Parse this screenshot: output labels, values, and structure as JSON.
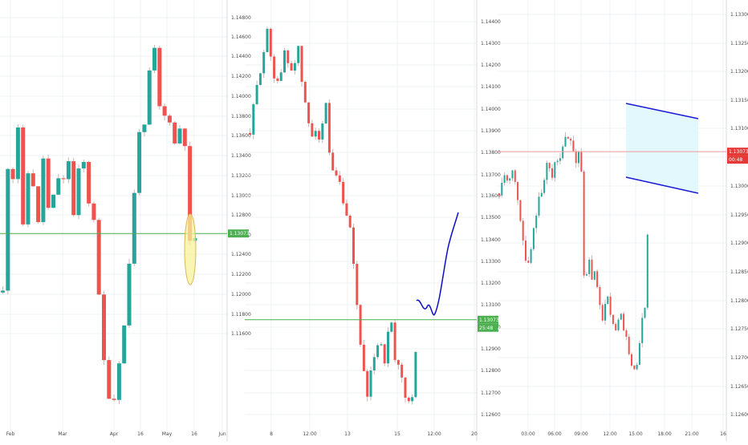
{
  "colors": {
    "up": "#26a69a",
    "down": "#ef5350",
    "wick": "#c9b8b8",
    "price_line_green": "#4caf50",
    "price_line_red": "#ef9a9a",
    "label_green": "#4caf50",
    "label_red": "#e53935",
    "channel": "#1a1ad6",
    "channel_fill": "#e3f8fd",
    "ellipse_fill": "#f7f39a",
    "ellipse_stroke": "#d9b75a",
    "drawn_path": "#0d0dc7"
  },
  "chart_data": [
    {
      "type": "candlestick",
      "timeframe_hint": "daily",
      "x_ticks": [
        "Feb",
        "Mar",
        "Apr",
        "16",
        "May",
        "16",
        "Jun"
      ],
      "y_ticks": [
        "1.14800",
        "1.14600",
        "1.14400",
        "1.14200",
        "1.14000",
        "1.13800",
        "1.13600",
        "1.13400",
        "1.13200",
        "1.13000",
        "1.12800",
        "1.12600",
        "1.12400",
        "1.12200",
        "1.12000",
        "1.11800",
        "1.11600"
      ],
      "ylim": [
        1.115,
        1.1488
      ],
      "last_price_label": "1.13073",
      "last_price": 1.13073,
      "annotation": "yellow ellipse around latest candle",
      "path_points": [
        [
          0,
          1.126
        ],
        [
          4,
          1.134
        ],
        [
          9,
          1.139
        ],
        [
          14,
          1.134
        ],
        [
          19,
          1.1395
        ],
        [
          24,
          1.13
        ],
        [
          30,
          1.135
        ],
        [
          35,
          1.137
        ],
        [
          40,
          1.133
        ],
        [
          45,
          1.131
        ],
        [
          50,
          1.137
        ],
        [
          55,
          1.1345
        ],
        [
          60,
          1.129
        ],
        [
          66,
          1.138
        ],
        [
          72,
          1.133
        ],
        [
          78,
          1.136
        ],
        [
          84,
          1.137
        ],
        [
          88,
          1.132
        ],
        [
          93,
          1.1345
        ],
        [
          98,
          1.138
        ],
        [
          103,
          1.135
        ],
        [
          108,
          1.133
        ],
        [
          114,
          1.132
        ],
        [
          118,
          1.128
        ],
        [
          122,
          1.122
        ],
        [
          127,
          1.12
        ],
        [
          132,
          1.118
        ],
        [
          138,
          1.1172
        ],
        [
          143,
          1.12
        ],
        [
          148,
          1.122
        ],
        [
          153,
          1.124
        ],
        [
          158,
          1.129
        ],
        [
          163,
          1.133
        ],
        [
          168,
          1.138
        ],
        [
          173,
          1.141
        ],
        [
          178,
          1.138
        ],
        [
          182,
          1.143
        ],
        [
          186,
          1.146
        ],
        [
          190,
          1.145
        ],
        [
          195,
          1.141
        ],
        [
          199,
          1.138
        ],
        [
          204,
          1.142
        ],
        [
          208,
          1.14
        ],
        [
          212,
          1.139
        ],
        [
          216,
          1.137
        ],
        [
          220,
          1.139
        ],
        [
          224,
          1.141
        ],
        [
          228,
          1.137
        ],
        [
          232,
          1.13
        ],
        [
          236,
          1.129
        ],
        [
          240,
          1.1307
        ]
      ]
    },
    {
      "type": "candlestick",
      "timeframe_hint": "hourly",
      "x_ticks": [
        "8",
        "12:00",
        "13",
        "15",
        "12:00",
        "20"
      ],
      "y_ticks": [
        "1.14400",
        "1.14300",
        "1.14200",
        "1.14100",
        "1.14000",
        "1.13900",
        "1.13800",
        "1.13700",
        "1.13600",
        "1.13500",
        "1.13400",
        "1.13300",
        "1.13200",
        "1.13100",
        "1.13000",
        "1.12900",
        "1.12800",
        "1.12700",
        "1.12600"
      ],
      "ylim": [
        1.1258,
        1.1447
      ],
      "last_price_label": "1.13073",
      "countdown_label": "25:48",
      "last_price": 1.13073,
      "annotation": "hand-drawn blue projection path",
      "path_points": [
        [
          0,
          1.1391
        ],
        [
          8,
          1.141
        ],
        [
          15,
          1.1425
        ],
        [
          22,
          1.1436
        ],
        [
          28,
          1.142
        ],
        [
          33,
          1.1415
        ],
        [
          38,
          1.1415
        ],
        [
          44,
          1.143
        ],
        [
          50,
          1.1418
        ],
        [
          55,
          1.1424
        ],
        [
          60,
          1.1428
        ],
        [
          66,
          1.141
        ],
        [
          70,
          1.14
        ],
        [
          76,
          1.139
        ],
        [
          82,
          1.1395
        ],
        [
          88,
          1.1385
        ],
        [
          94,
          1.1405
        ],
        [
          99,
          1.138
        ],
        [
          104,
          1.137
        ],
        [
          110,
          1.137
        ],
        [
          116,
          1.136
        ],
        [
          121,
          1.135
        ],
        [
          126,
          1.1345
        ],
        [
          132,
          1.1318
        ],
        [
          137,
          1.13
        ],
        [
          142,
          1.1282
        ],
        [
          147,
          1.1268
        ],
        [
          152,
          1.1288
        ],
        [
          157,
          1.1295
        ],
        [
          162,
          1.13
        ],
        [
          167,
          1.1288
        ],
        [
          172,
          1.13
        ],
        [
          176,
          1.1305
        ],
        [
          180,
          1.1288
        ],
        [
          185,
          1.1285
        ],
        [
          190,
          1.128
        ],
        [
          195,
          1.127
        ],
        [
          200,
          1.127
        ],
        [
          204,
          1.1272
        ],
        [
          207,
          1.13
        ]
      ]
    },
    {
      "type": "candlestick",
      "timeframe_hint": "5-minute",
      "x_ticks": [
        "03:00",
        "06:00",
        "09:00",
        "12:00",
        "15:00",
        "18:00",
        "21:00",
        "16"
      ],
      "y_ticks": [
        "1.13300",
        "1.13250",
        "1.13200",
        "1.13150",
        "1.13100",
        "1.13050",
        "1.13000",
        "1.12950",
        "1.12900",
        "1.12850",
        "1.12800",
        "1.12750",
        "1.12700",
        "1.12650",
        "1.12600"
      ],
      "ylim": [
        1.12585,
        1.13325
      ],
      "last_price_label": "1.13073",
      "countdown_label": "00:48",
      "last_price": 1.13073,
      "annotation": "descending channel box",
      "path_points": [
        [
          0,
          1.13
        ],
        [
          5,
          1.1304
        ],
        [
          10,
          1.1302
        ],
        [
          16,
          1.1305
        ],
        [
          22,
          1.13
        ],
        [
          27,
          1.1295
        ],
        [
          31,
          1.129
        ],
        [
          35,
          1.1286
        ],
        [
          40,
          1.129
        ],
        [
          45,
          1.1296
        ],
        [
          50,
          1.13
        ],
        [
          55,
          1.1302
        ],
        [
          60,
          1.1305
        ],
        [
          66,
          1.1302
        ],
        [
          70,
          1.1307
        ],
        [
          75,
          1.1305
        ],
        [
          80,
          1.1308
        ],
        [
          85,
          1.131
        ],
        [
          90,
          1.1308
        ],
        [
          95,
          1.1306
        ],
        [
          100,
          1.1307
        ],
        [
          104,
          1.13
        ],
        [
          107,
          1.1275
        ],
        [
          110,
          1.1292
        ],
        [
          114,
          1.1284
        ],
        [
          118,
          1.1287
        ],
        [
          122,
          1.1283
        ],
        [
          126,
          1.128
        ],
        [
          130,
          1.1278
        ],
        [
          135,
          1.1282
        ],
        [
          140,
          1.1278
        ],
        [
          145,
          1.1275
        ],
        [
          150,
          1.1279
        ],
        [
          156,
          1.1275
        ],
        [
          162,
          1.1272
        ],
        [
          166,
          1.127
        ],
        [
          170,
          1.1267
        ],
        [
          174,
          1.1272
        ],
        [
          178,
          1.1278
        ],
        [
          182,
          1.1279
        ],
        [
          184,
          1.1285
        ],
        [
          186,
          1.1305
        ],
        [
          188,
          1.1307
        ]
      ]
    }
  ]
}
